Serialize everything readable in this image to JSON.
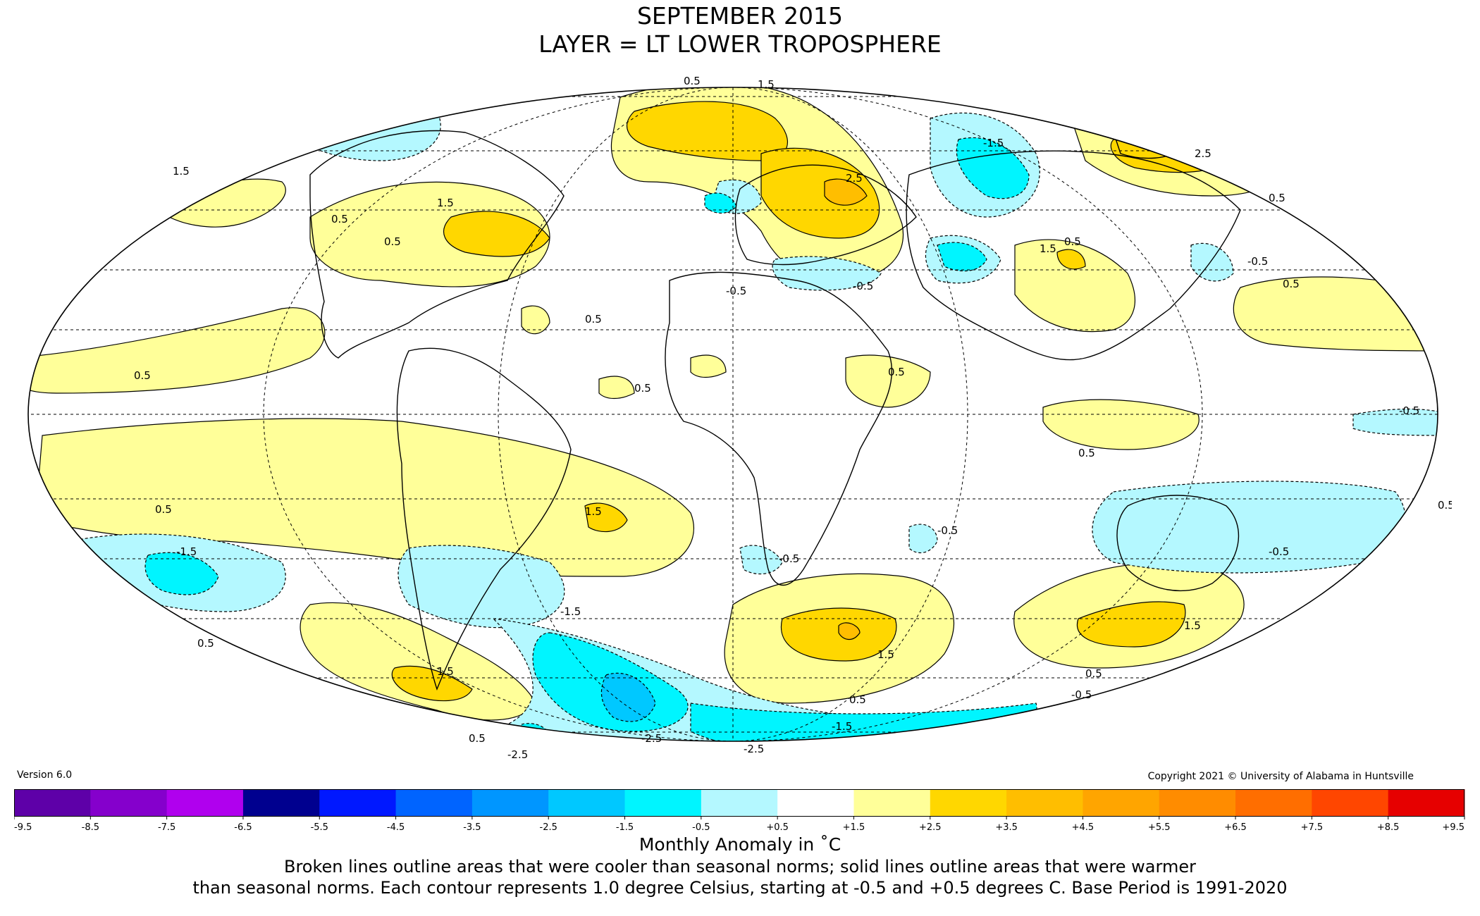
{
  "title": "SEPTEMBER 2015",
  "subtitle": "LAYER = LT LOWER TROPOSPHERE",
  "version": "Version 6.0",
  "copyright": "Copyright 2021 © University of Alabama in Huntsville",
  "colorbar": {
    "ticks": [
      "-9.5",
      "-8.5",
      "-7.5",
      "-6.5",
      "-5.5",
      "-4.5",
      "-3.5",
      "-2.5",
      "-1.5",
      "-0.5",
      "+0.5",
      "+1.5",
      "+2.5",
      "+3.5",
      "+4.5",
      "+5.5",
      "+6.5",
      "+7.5",
      "+8.5",
      "+9.5"
    ],
    "colors": [
      "#3a0068",
      "#5e00a8",
      "#8500cc",
      "#b000ee",
      "#00008f",
      "#0018ff",
      "#0064ff",
      "#0096ff",
      "#00c8ff",
      "#00f5ff",
      "#b4f8ff",
      "#ffffff",
      "#ffff99",
      "#ffd700",
      "#ffbe00",
      "#ffa500",
      "#ff8c00",
      "#ff6e00",
      "#ff4600",
      "#e60000",
      "#b40000"
    ],
    "unit_label": "Monthly Anomaly in ˚C"
  },
  "caption_line1": "Broken lines outline areas that were cooler than seasonal norms; solid lines outline areas that were warmer",
  "caption_line2": "than seasonal norms. Each contour represents 1.0 degree Celsius, starting at -0.5 and +0.5 degrees C. Base Period is 1991-2020",
  "map": {
    "projection": "Mollweide",
    "colors": {
      "warm1": "#ffff99",
      "warm2": "#ffd700",
      "warm3": "#ffbe00",
      "cool1": "#b4f8ff",
      "cool2": "#00f5ff",
      "cool3": "#00c8ff"
    },
    "contour_labels": [
      "0.5",
      "1.5",
      "2.5",
      "-0.5",
      "-1.5",
      "-2.5"
    ]
  }
}
